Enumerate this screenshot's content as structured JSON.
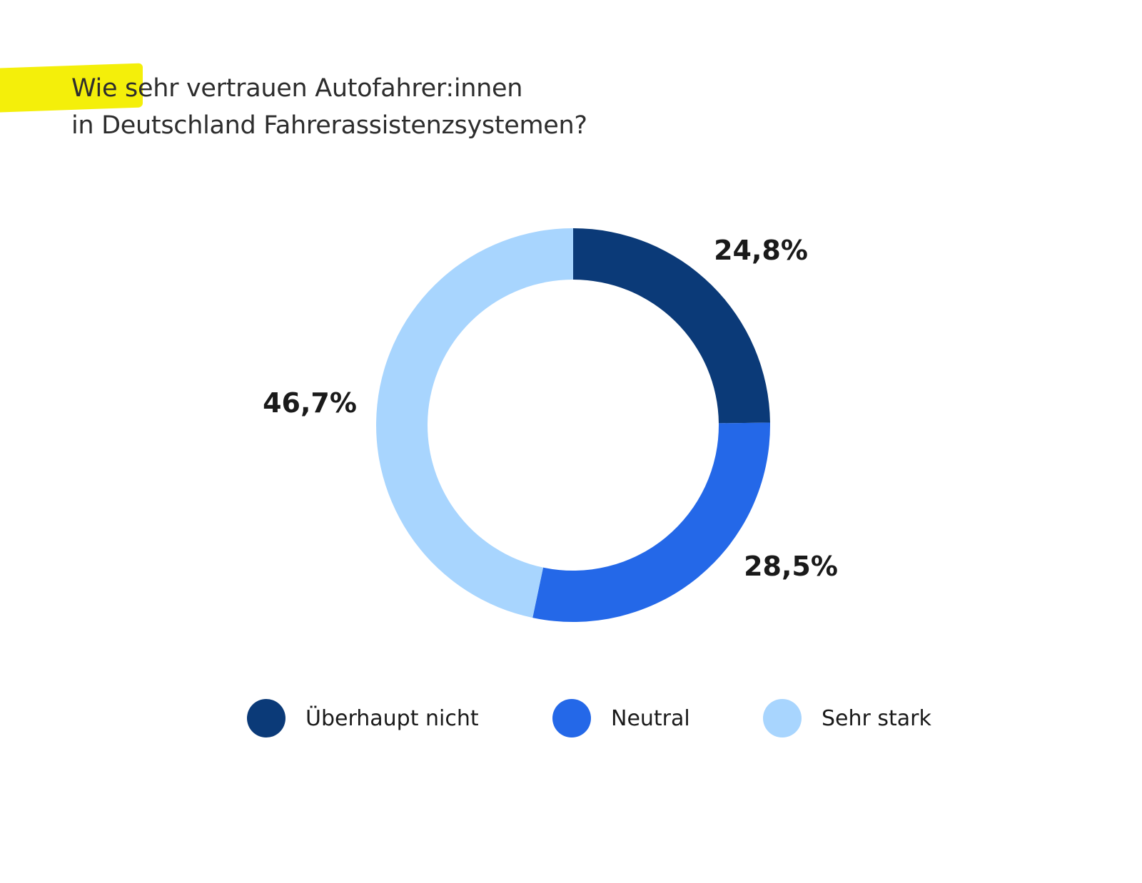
{
  "title": {
    "line1": "Wie sehr vertrauen Autofahrer:innen",
    "line2": "in Deutschland Fahrerassistenzsystemen?"
  },
  "colors": {
    "highlight": "#f4ef0a",
    "dark_blue": "#0b3a78",
    "blue": "#2468e8",
    "light_blue": "#a8d5fe"
  },
  "chart_data": {
    "type": "pie",
    "variant": "donut",
    "title": "Wie sehr vertrauen Autofahrer:innen in Deutschland Fahrerassistenzsystemen?",
    "categories": [
      "Überhaupt nicht",
      "Neutral",
      "Sehr stark"
    ],
    "values": [
      24.8,
      28.5,
      46.7
    ],
    "labels": [
      "24,8%",
      "28,5%",
      "46,7%"
    ],
    "colors": [
      "#0b3a78",
      "#2468e8",
      "#a8d5fe"
    ],
    "legend_position": "bottom"
  },
  "legend": {
    "items": [
      {
        "label": "Überhaupt nicht",
        "color": "#0b3a78"
      },
      {
        "label": "Neutral",
        "color": "#2468e8"
      },
      {
        "label": "Sehr stark",
        "color": "#a8d5fe"
      }
    ]
  }
}
